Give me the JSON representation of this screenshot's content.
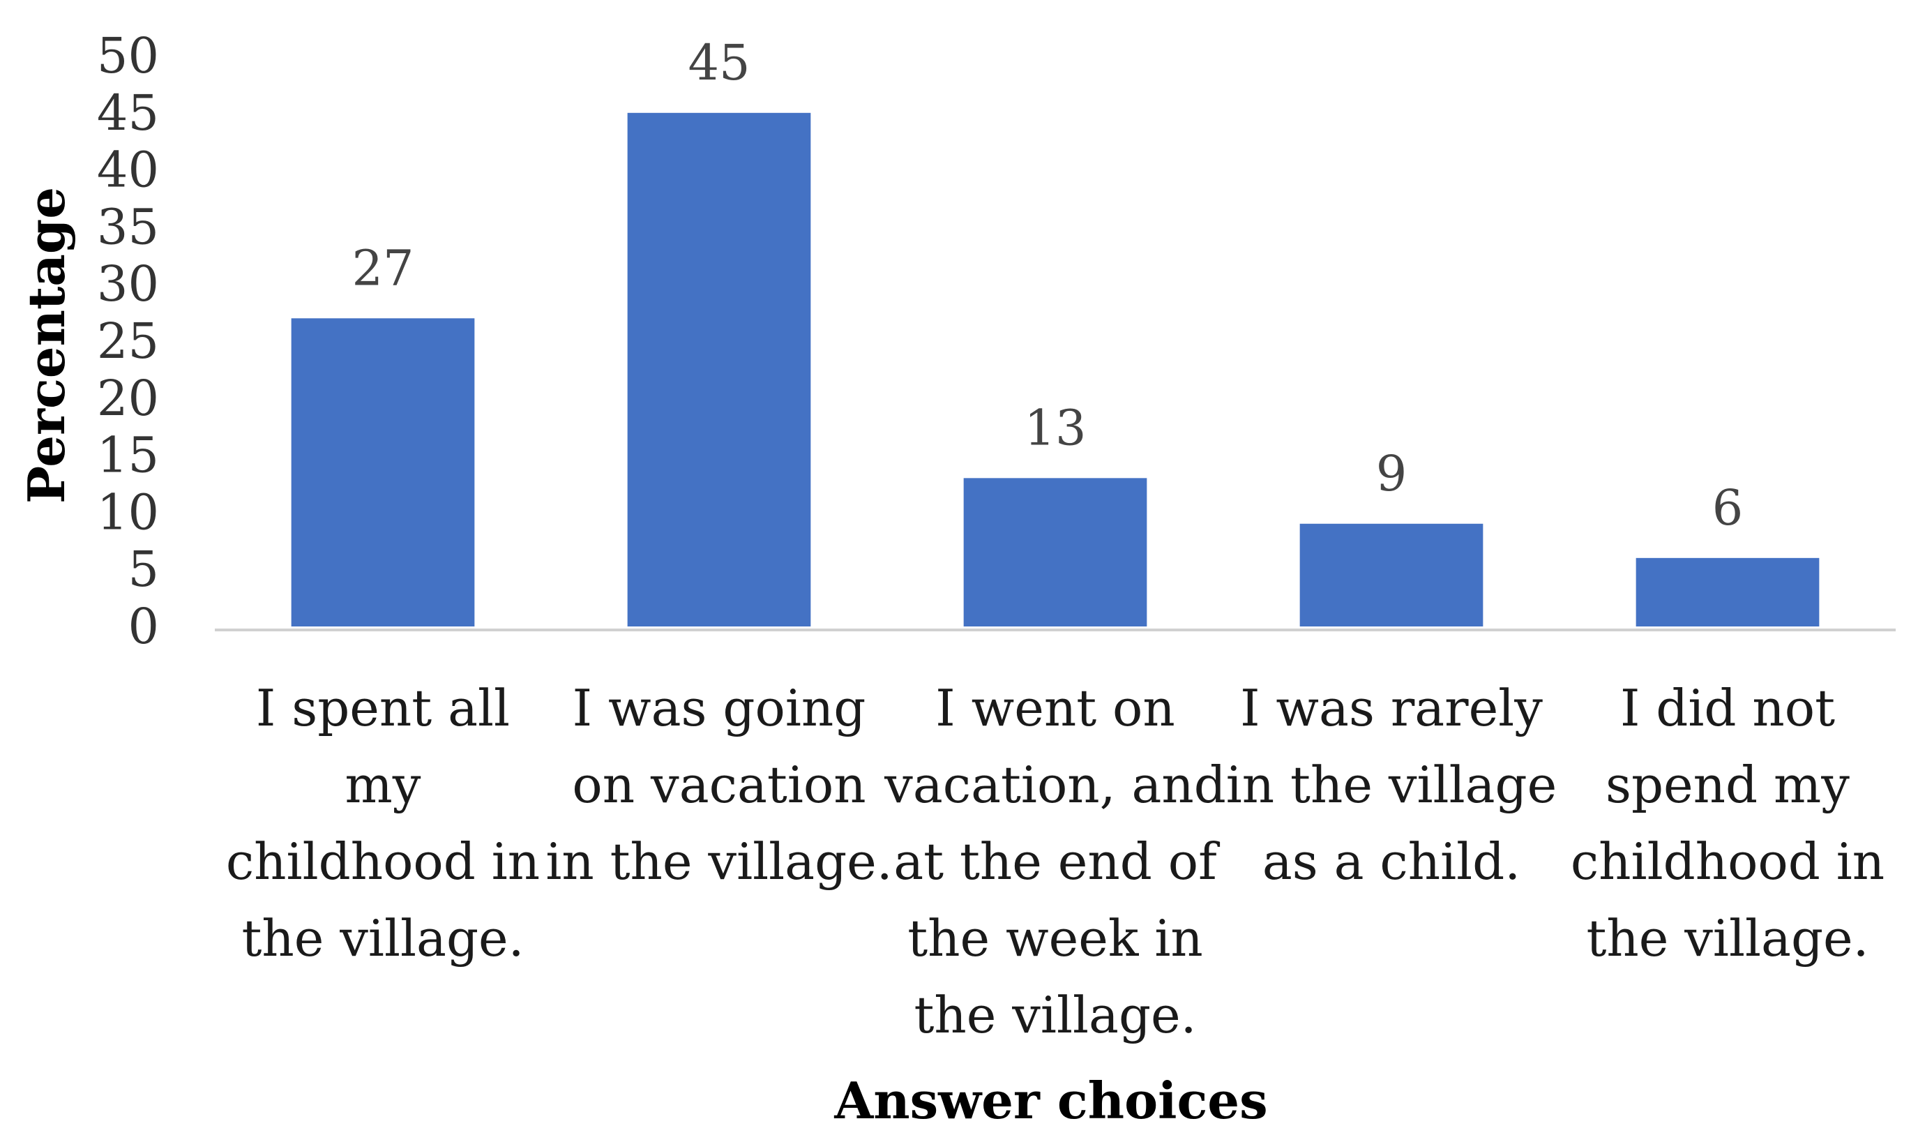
{
  "chart_data": {
    "type": "bar",
    "title": "",
    "xlabel": "Answer choices",
    "ylabel": "Percentage",
    "ylim": [
      0,
      50
    ],
    "yticks": [
      0,
      5,
      10,
      15,
      20,
      25,
      30,
      35,
      40,
      45,
      50
    ],
    "grid": false,
    "legend": "none",
    "bar_color": "#4472c4",
    "categories": [
      "I spent all my childhood in the village.",
      "I was going on vacation in the village.",
      "I went on vacation, and at the end of the week in the village.",
      "I was rarely in the village as a child.",
      "I did not spend my childhood in the village."
    ],
    "category_lines": [
      [
        "I spent all",
        "my",
        "childhood in",
        "the village."
      ],
      [
        "I was going",
        "on vacation",
        "in the village."
      ],
      [
        "I went on",
        "vacation, and",
        "at the end of",
        "the week in",
        "the village."
      ],
      [
        "I was rarely",
        "in the village",
        "as a child."
      ],
      [
        "I did not",
        "spend my",
        "childhood in",
        "the village."
      ]
    ],
    "values": [
      27,
      45,
      13,
      9,
      6
    ],
    "data_labels": [
      "27",
      "45",
      "13",
      "9",
      "6"
    ]
  }
}
